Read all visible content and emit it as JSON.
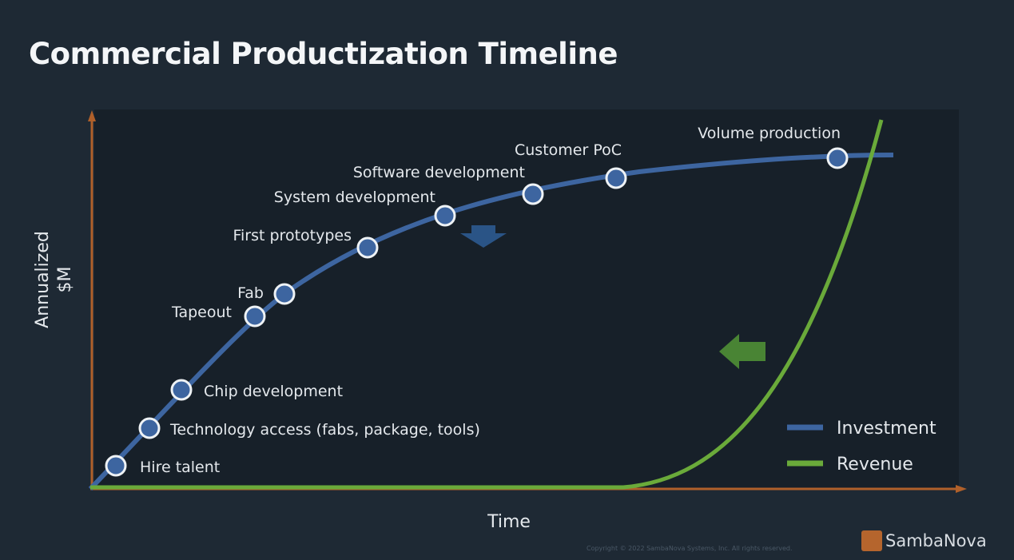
{
  "title": "Commercial Productization Timeline",
  "chart_data": {
    "type": "line",
    "title": "Commercial Productization Timeline",
    "xlabel": "Time",
    "ylabel": "Annualized $M",
    "grid": false,
    "legend_position": "bottom-right",
    "series": [
      {
        "name": "Investment",
        "color": "#3d65a0"
      },
      {
        "name": "Revenue",
        "color": "#6aaa3a"
      }
    ],
    "milestones": [
      "Hire talent",
      "Technology access (fabs, package, tools)",
      "Chip development",
      "Tapeout",
      "Fab",
      "First prototypes",
      "System development",
      "Software development",
      "Customer PoC",
      "Volume production"
    ],
    "axis_color": "#b0602a"
  },
  "footer": {
    "copyright": "Copyright © 2022 SambaNova Systems, Inc. All rights reserved.",
    "logo": "SambaNova"
  }
}
